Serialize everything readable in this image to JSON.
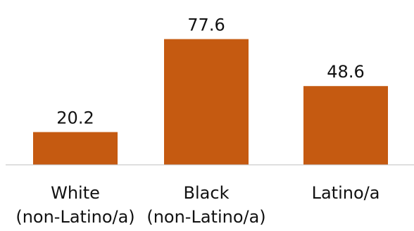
{
  "chart_data": {
    "type": "bar",
    "categories": [
      [
        "White",
        "(non-Latino/a)"
      ],
      [
        "Black",
        "(non-Latino/a)"
      ],
      [
        "Latino/a"
      ]
    ],
    "values": [
      20.2,
      77.6,
      48.6
    ],
    "data_labels": [
      "20.2",
      "77.6",
      "48.6"
    ],
    "title": "",
    "xlabel": "",
    "ylabel": "",
    "ylim": [
      0,
      100
    ],
    "grid": false,
    "legend": "none",
    "bar_color": "#c55a11",
    "axis_color": "#bfbfbf"
  }
}
